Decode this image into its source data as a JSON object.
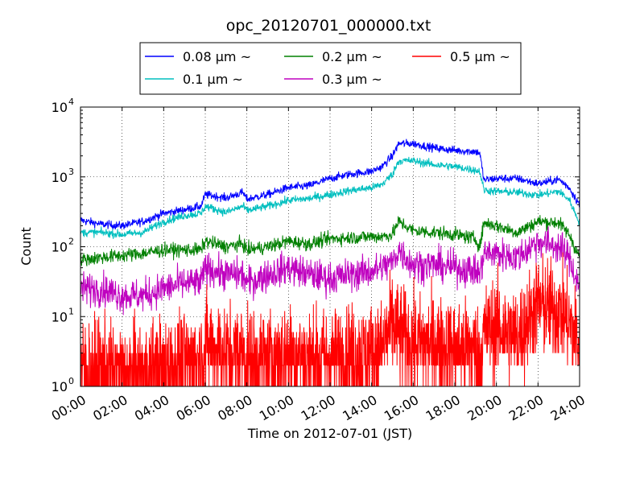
{
  "chart_data": {
    "type": "line",
    "title": "opc_20120701_000000.txt",
    "xlabel": "Time on 2012-07-01 (JST)",
    "ylabel": "Count",
    "yscale": "log",
    "ylim": [
      1,
      10000
    ],
    "xlim_hours": [
      0,
      24
    ],
    "grid": true,
    "legend_position": "top",
    "x_ticks": [
      "00:00",
      "02:00",
      "04:00",
      "06:00",
      "08:00",
      "10:00",
      "12:00",
      "14:00",
      "16:00",
      "18:00",
      "20:00",
      "22:00",
      "24:00"
    ],
    "y_ticks": [
      {
        "value": 1,
        "base": "10",
        "exp": "0"
      },
      {
        "value": 10,
        "base": "10",
        "exp": "1"
      },
      {
        "value": 100,
        "base": "10",
        "exp": "2"
      },
      {
        "value": 1000,
        "base": "10",
        "exp": "3"
      },
      {
        "value": 10000,
        "base": "10",
        "exp": "4"
      }
    ],
    "x_hours": [
      0,
      1,
      2,
      3,
      4,
      5,
      5.8,
      6,
      7,
      7.8,
      8,
      9,
      10,
      11,
      12,
      13,
      14,
      14.5,
      15,
      15.3,
      16,
      17,
      18,
      19,
      19.2,
      19.4,
      20,
      21,
      22,
      23,
      23.5,
      24
    ],
    "series": [
      {
        "name": "0.08 µm ~",
        "color": "#0000ff",
        "noise": 0.03,
        "values": [
          240,
          210,
          200,
          230,
          300,
          340,
          380,
          560,
          500,
          600,
          480,
          560,
          700,
          750,
          950,
          1100,
          1200,
          1400,
          2000,
          3000,
          3000,
          2600,
          2400,
          2300,
          2200,
          900,
          950,
          950,
          800,
          920,
          700,
          400
        ]
      },
      {
        "name": "0.1 µm ~",
        "color": "#00bfbf",
        "noise": 0.03,
        "values": [
          160,
          160,
          150,
          160,
          230,
          280,
          300,
          380,
          310,
          380,
          330,
          380,
          460,
          490,
          560,
          640,
          700,
          780,
          1100,
          1700,
          1700,
          1500,
          1400,
          1250,
          1200,
          650,
          620,
          600,
          550,
          620,
          470,
          220
        ]
      },
      {
        "name": "0.2 µm ~",
        "color": "#008000",
        "noise": 0.05,
        "values": [
          65,
          70,
          75,
          80,
          90,
          90,
          90,
          120,
          100,
          110,
          90,
          100,
          120,
          110,
          130,
          135,
          140,
          140,
          150,
          230,
          170,
          160,
          150,
          130,
          100,
          220,
          200,
          160,
          230,
          220,
          150,
          70
        ]
      },
      {
        "name": "0.3 µm ~",
        "color": "#bf00bf",
        "noise": 0.12,
        "values": [
          25,
          25,
          20,
          20,
          25,
          30,
          30,
          50,
          40,
          40,
          30,
          40,
          50,
          40,
          35,
          40,
          45,
          50,
          60,
          90,
          55,
          55,
          50,
          45,
          40,
          80,
          80,
          70,
          120,
          100,
          70,
          25
        ]
      },
      {
        "name": "0.5 µm ~",
        "color": "#ff0000",
        "noise": 0.35,
        "values": [
          1.8,
          1.8,
          1.5,
          1.6,
          2,
          2.2,
          2.5,
          4,
          3,
          3,
          2.5,
          2.5,
          3,
          2.5,
          2.5,
          3,
          3,
          3.5,
          8,
          6,
          4,
          4,
          3.5,
          3.5,
          2.5,
          6,
          7,
          5,
          15,
          12,
          8,
          4
        ]
      }
    ]
  }
}
